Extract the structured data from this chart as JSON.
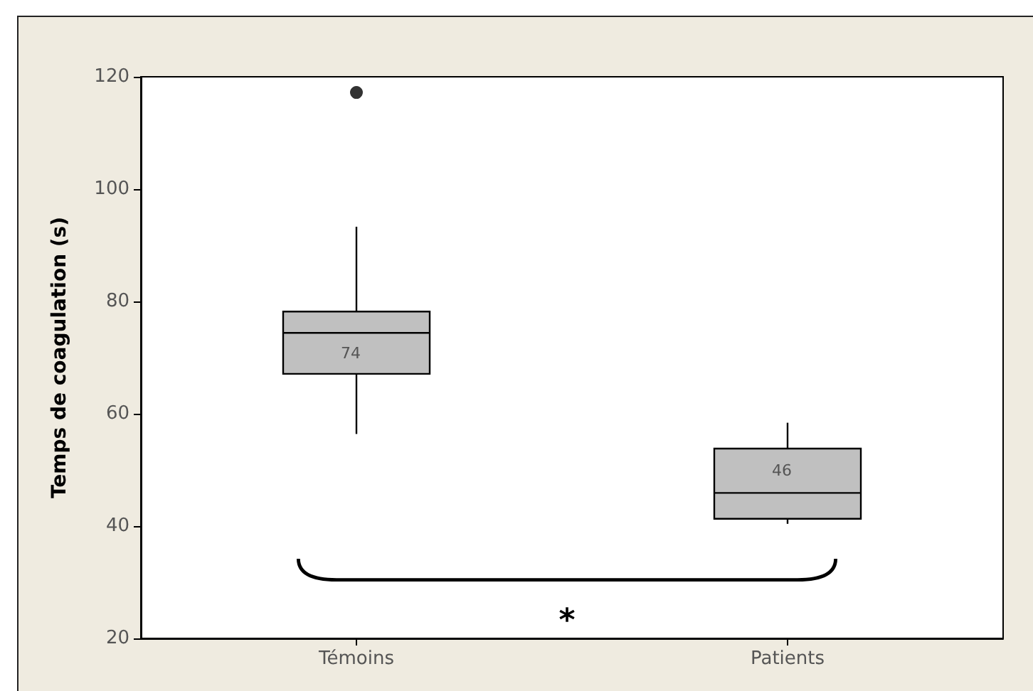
{
  "chart_data": {
    "type": "box",
    "ylabel": "Temps de coagulation (s)",
    "categories": [
      "Témoins",
      "Patients"
    ],
    "series": [
      {
        "color": "#c0c0c0",
        "boxes": [
          {
            "low": 56.4,
            "q1": 67.1,
            "median": 74.4,
            "q3": 78.2,
            "high": 93.3,
            "outliers": [
              117.2
            ]
          },
          {
            "low": 40.4,
            "q1": 41.3,
            "median": 45.9,
            "q3": 53.8,
            "high": 58.4
          }
        ],
        "value_labels": [
          "74",
          "46"
        ]
      }
    ],
    "ylim": [
      20,
      120
    ],
    "yticks": [
      20,
      40,
      60,
      80,
      100,
      120
    ],
    "annotations": [
      "*"
    ]
  }
}
